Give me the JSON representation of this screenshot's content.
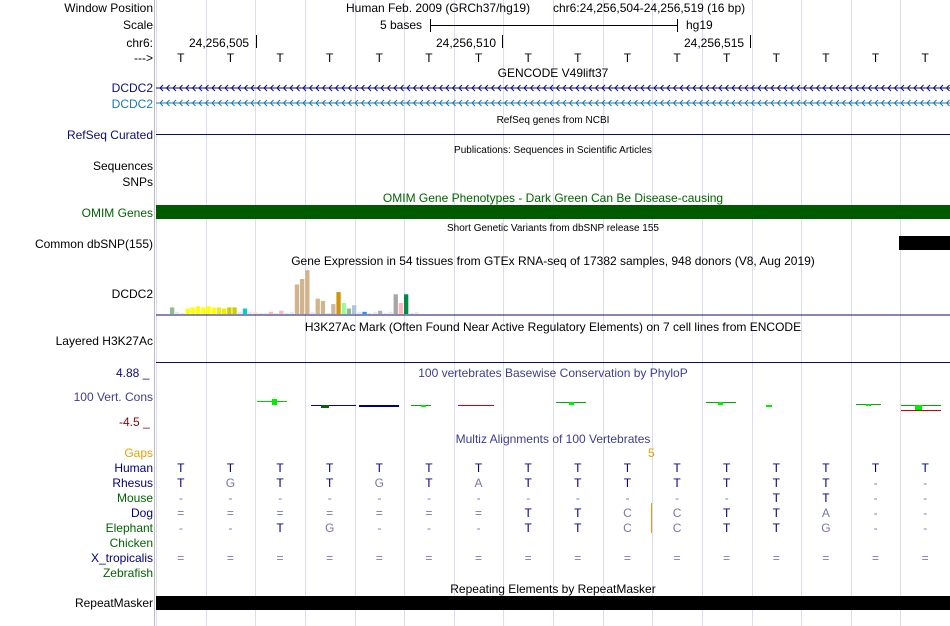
{
  "header": {
    "window_label": "Window Position",
    "scale_label": "Scale",
    "chr_label": "chr6:",
    "arrow_label": "--->",
    "assembly": "Human Feb. 2009 (GRCh37/hg19)",
    "position": "chr6:24,256,504-24,256,519 (16 bp)",
    "scale_text": "5 bases",
    "db": "hg19",
    "coords": [
      "24,256,505",
      "24,256,510",
      "24,256,515"
    ],
    "bases": [
      "T",
      "T",
      "T",
      "T",
      "T",
      "T",
      "T",
      "T",
      "T",
      "T",
      "T",
      "T",
      "T",
      "T",
      "T",
      "T"
    ]
  },
  "tracks": {
    "gencode": {
      "title": "GENCODE V49lift37",
      "labels": [
        "DCDC2",
        "DCDC2"
      ]
    },
    "refseq": {
      "title": "RefSeq genes from NCBI",
      "label": "RefSeq Curated"
    },
    "publications": {
      "title": "Publications: Sequences in Scientific Articles",
      "label": "Sequences"
    },
    "snps_label": "SNPs",
    "omim": {
      "title": "OMIM Gene Phenotypes - Dark Green Can Be Disease-causing",
      "label": "OMIM Genes"
    },
    "dbsnp": {
      "title": "Short Genetic Variants from dbSNP release 155",
      "label": "Common dbSNP(155)"
    },
    "gtex": {
      "title": "Gene Expression in 54 tissues from GTEx RNA-seq of 17382 samples, 948 donors (V8, Aug 2019)",
      "label": "DCDC2"
    },
    "h3k27ac": {
      "title": "H3K27Ac Mark (Often Found Near Active Regulatory Elements) on 7 cell lines from ENCODE",
      "label": "Layered H3K27Ac"
    },
    "phylop": {
      "title": "100 vertebrates Basewise Conservation by PhyloP",
      "label": "100 Vert. Cons",
      "max": "4.88 _",
      "min": "-4.5 _"
    },
    "multiz": {
      "title": "Multiz Alignments of 100 Vertebrates",
      "gap_label": "Gaps",
      "gap_value": "5"
    },
    "repeatmasker": {
      "title": "Repeating Elements by RepeatMasker",
      "label": "RepeatMasker"
    }
  },
  "alignment": {
    "species": [
      {
        "name": "Human",
        "color": "#000080",
        "bases": [
          "T",
          "T",
          "T",
          "T",
          "T",
          "T",
          "T",
          "T",
          "T",
          "T",
          "T",
          "T",
          "T",
          "T",
          "T",
          "T"
        ]
      },
      {
        "name": "Rhesus",
        "color": "#000080",
        "bases": [
          "T",
          "G",
          "T",
          "T",
          "G",
          "T",
          "A",
          "T",
          "T",
          "T",
          "T",
          "T",
          "T",
          "T",
          "-",
          "-"
        ]
      },
      {
        "name": "Mouse",
        "color": "#006400",
        "bases": [
          "-",
          "-",
          "-",
          "-",
          "-",
          "-",
          "-",
          "-",
          "-",
          "-",
          "-",
          "-",
          "T",
          "T",
          "-",
          "-"
        ]
      },
      {
        "name": "Dog",
        "color": "#000080",
        "bases": [
          "=",
          "=",
          "=",
          "=",
          "=",
          "=",
          "=",
          "T",
          "T",
          "C",
          "C",
          "T",
          "T",
          "A",
          "-",
          "-"
        ]
      },
      {
        "name": "Elephant",
        "color": "#006400",
        "bases": [
          "-",
          "-",
          "T",
          "G",
          "-",
          "-",
          "-",
          "T",
          "T",
          "C",
          "C",
          "T",
          "T",
          "G",
          "-",
          "-"
        ]
      },
      {
        "name": "Chicken",
        "color": "#006400",
        "bases": [
          "",
          "",
          "",
          "",
          "",
          "",
          "",
          "",
          "",
          "",
          "",
          "",
          "",
          "",
          "",
          ""
        ]
      },
      {
        "name": "X_tropicalis",
        "color": "#000080",
        "bases": [
          "=",
          "=",
          "=",
          "=",
          "=",
          "=",
          "=",
          "=",
          "=",
          "=",
          "=",
          "=",
          "=",
          "=",
          "=",
          "="
        ]
      },
      {
        "name": "Zebrafish",
        "color": "#006400",
        "bases": [
          "",
          "",
          "",
          "",
          "",
          "",
          "",
          "",
          "",
          "",
          "",
          "",
          "",
          "",
          "",
          ""
        ]
      }
    ]
  },
  "chart_data": {
    "type": "bar",
    "title": "Gene Expression in 54 tissues from GTEx RNA-seq of 17382 samples, 948 donors (V8, Aug 2019)",
    "values": [
      0.6,
      0.2,
      0.1,
      0.5,
      0.6,
      0.7,
      0.6,
      0.7,
      0.6,
      0.6,
      0.5,
      0.6,
      0.6,
      0.2,
      0.5,
      0.2,
      0.2,
      0.1,
      0.1,
      0.2,
      0.1,
      0.3,
      0.1,
      0.2,
      2.7,
      3.2,
      4.0,
      0.2,
      1.4,
      1.2,
      0.1,
      0.9,
      2.0,
      1.0,
      0.5,
      0.8,
      0.2,
      0.2,
      0.1,
      0.2,
      0.3,
      0.1,
      0.2,
      1.8,
      1.0,
      1.8,
      0.1,
      0.2
    ],
    "colors": [
      "#8fbc8f",
      "#e6e6fa",
      "#ffe4c4",
      "#ffff00",
      "#ffff00",
      "#ffff00",
      "#ffff00",
      "#ffff00",
      "#ffff00",
      "#eeee00",
      "#eeee00",
      "#cdcd00",
      "#cdcd00",
      "#e6e6fa",
      "#00ced1",
      "#e6e6fa",
      "#ffe4c4",
      "#e6e6fa",
      "#e6e6fa",
      "#ffb6c1",
      "#e6e6fa",
      "#ffb6c1",
      "#e6e6fa",
      "#e6e6fa",
      "#d2b48c",
      "#d2b48c",
      "#d2b48c",
      "#e6e6fa",
      "#d2b48c",
      "#d2b48c",
      "#e6e6fa",
      "#cdb79e",
      "#cd950c",
      "#98fb98",
      "#8fbc8f",
      "#b0c4de",
      "#e6e6fa",
      "#1e90ff",
      "#e6e6fa",
      "#e6e6fa",
      "#b0b0b0",
      "#e6e6fa",
      "#e6e6fa",
      "#a6a6a6",
      "#ffb6c1",
      "#008b45",
      "#e6e6fa",
      "#e6e6fa"
    ],
    "ylim": [
      0,
      4.2
    ]
  }
}
